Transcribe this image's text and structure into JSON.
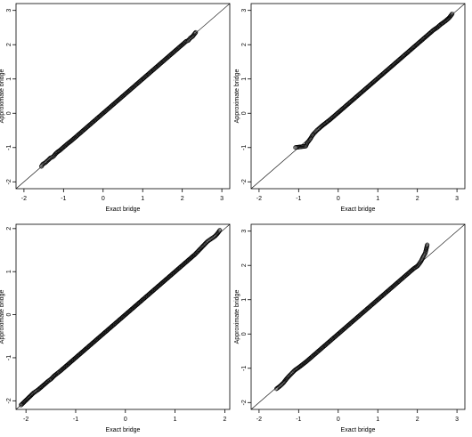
{
  "chart_data": [
    {
      "type": "scatter",
      "xlabel": "Exact bridge",
      "ylabel": "Approximate bridge",
      "xlim": [
        -2.2,
        3.2
      ],
      "ylim": [
        -2.2,
        3.2
      ],
      "xticks": [
        "-2",
        "-1",
        "0",
        "1",
        "2",
        "3"
      ],
      "yticks": [
        "-2",
        "-1",
        "0",
        "1",
        "2",
        "3"
      ],
      "reference_line": "y = x",
      "series": [
        {
          "x": [
            -1.56,
            -1.52,
            -1.47,
            -1.42,
            -1.38,
            -1.33,
            -1.28,
            -1.24,
            -1.2,
            -1.15,
            -1.1,
            -1.05,
            -1.0,
            -0.9,
            -0.8,
            -0.7,
            -0.6,
            -0.5,
            -0.4,
            -0.3,
            -0.2,
            -0.1,
            0.0,
            0.1,
            0.2,
            0.3,
            0.4,
            0.5,
            0.6,
            0.7,
            0.8,
            0.9,
            1.0,
            1.1,
            1.2,
            1.3,
            1.4,
            1.5,
            1.6,
            1.7,
            1.8,
            1.9,
            2.0,
            2.05,
            2.1,
            2.15,
            2.2,
            2.26,
            2.34
          ],
          "y": [
            -1.55,
            -1.48,
            -1.45,
            -1.4,
            -1.36,
            -1.3,
            -1.28,
            -1.24,
            -1.18,
            -1.13,
            -1.09,
            -1.04,
            -0.99,
            -0.89,
            -0.8,
            -0.7,
            -0.6,
            -0.5,
            -0.4,
            -0.3,
            -0.2,
            -0.1,
            0.0,
            0.1,
            0.2,
            0.3,
            0.4,
            0.5,
            0.6,
            0.7,
            0.8,
            0.9,
            1.0,
            1.1,
            1.2,
            1.3,
            1.4,
            1.5,
            1.6,
            1.7,
            1.8,
            1.9,
            2.0,
            2.05,
            2.1,
            2.12,
            2.19,
            2.24,
            2.36
          ]
        }
      ]
    },
    {
      "type": "scatter",
      "xlabel": "Exact bridge",
      "ylabel": "Approximate bridge",
      "xlim": [
        -2.2,
        3.2
      ],
      "ylim": [
        -2.2,
        3.2
      ],
      "xticks": [
        "-2",
        "-1",
        "0",
        "1",
        "2",
        "3"
      ],
      "yticks": [
        "-2",
        "-1",
        "0",
        "1",
        "2",
        "3"
      ],
      "reference_line": "y = x",
      "series": [
        {
          "x": [
            -1.08,
            -0.95,
            -0.82,
            -0.78,
            -0.74,
            -0.7,
            -0.66,
            -0.62,
            -0.58,
            -0.54,
            -0.5,
            -0.4,
            -0.3,
            -0.2,
            -0.1,
            0.0,
            0.1,
            0.2,
            0.3,
            0.4,
            0.5,
            0.6,
            0.7,
            0.8,
            0.9,
            1.0,
            1.1,
            1.2,
            1.3,
            1.4,
            1.5,
            1.6,
            1.7,
            1.8,
            1.9,
            2.0,
            2.1,
            2.2,
            2.3,
            2.4,
            2.5,
            2.6,
            2.65,
            2.72,
            2.8,
            2.88
          ],
          "y": [
            -1.0,
            -0.98,
            -0.96,
            -0.86,
            -0.8,
            -0.74,
            -0.66,
            -0.6,
            -0.55,
            -0.5,
            -0.46,
            -0.36,
            -0.27,
            -0.18,
            -0.08,
            0.02,
            0.12,
            0.22,
            0.32,
            0.42,
            0.52,
            0.62,
            0.72,
            0.82,
            0.92,
            1.02,
            1.12,
            1.22,
            1.32,
            1.42,
            1.52,
            1.62,
            1.72,
            1.82,
            1.92,
            2.02,
            2.12,
            2.22,
            2.32,
            2.42,
            2.5,
            2.6,
            2.64,
            2.7,
            2.78,
            2.9
          ]
        }
      ]
    },
    {
      "type": "scatter",
      "xlabel": "Exact bridge",
      "ylabel": "Approximate bridge",
      "xlim": [
        -2.2,
        2.1
      ],
      "ylim": [
        -2.2,
        2.1
      ],
      "xticks": [
        "-2",
        "-1",
        "0",
        "1",
        "2"
      ],
      "yticks": [
        "-2",
        "-1",
        "0",
        "1",
        "2"
      ],
      "reference_line": "y = x",
      "series": [
        {
          "x": [
            -2.1,
            -1.85,
            -1.8,
            -1.75,
            -1.7,
            -1.65,
            -1.6,
            -1.55,
            -1.5,
            -1.45,
            -1.4,
            -1.3,
            -1.2,
            -1.1,
            -1.0,
            -0.9,
            -0.8,
            -0.7,
            -0.6,
            -0.5,
            -0.4,
            -0.3,
            -0.2,
            -0.1,
            0.0,
            0.1,
            0.2,
            0.3,
            0.4,
            0.5,
            0.6,
            0.7,
            0.8,
            0.9,
            1.0,
            1.1,
            1.2,
            1.3,
            1.4,
            1.45,
            1.5,
            1.55,
            1.6,
            1.65,
            1.7,
            1.75,
            1.8,
            1.85,
            1.9
          ],
          "y": [
            -2.1,
            -1.82,
            -1.78,
            -1.74,
            -1.69,
            -1.64,
            -1.59,
            -1.54,
            -1.5,
            -1.44,
            -1.39,
            -1.3,
            -1.2,
            -1.1,
            -1.0,
            -0.9,
            -0.8,
            -0.7,
            -0.6,
            -0.5,
            -0.4,
            -0.3,
            -0.2,
            -0.1,
            0.0,
            0.1,
            0.2,
            0.3,
            0.4,
            0.5,
            0.6,
            0.7,
            0.8,
            0.9,
            1.0,
            1.1,
            1.2,
            1.3,
            1.4,
            1.46,
            1.52,
            1.58,
            1.64,
            1.7,
            1.74,
            1.78,
            1.82,
            1.88,
            1.96
          ]
        }
      ]
    },
    {
      "type": "scatter",
      "xlabel": "Exact bridge",
      "ylabel": "Approximate bridge",
      "xlim": [
        -2.2,
        3.2
      ],
      "ylim": [
        -2.2,
        3.2
      ],
      "xticks": [
        "-2",
        "-1",
        "0",
        "1",
        "2",
        "3"
      ],
      "yticks": [
        "-2",
        "-1",
        "0",
        "1",
        "2",
        "3"
      ],
      "reference_line": "y = x",
      "series": [
        {
          "x": [
            -1.56,
            -1.45,
            -1.38,
            -1.3,
            -1.22,
            -1.15,
            -1.1,
            -1.05,
            -1.0,
            -0.9,
            -0.8,
            -0.7,
            -0.6,
            -0.5,
            -0.4,
            -0.3,
            -0.2,
            -0.1,
            0.0,
            0.1,
            0.2,
            0.3,
            0.4,
            0.5,
            0.6,
            0.7,
            0.8,
            0.9,
            1.0,
            1.1,
            1.2,
            1.3,
            1.4,
            1.5,
            1.6,
            1.7,
            1.8,
            1.9,
            2.0,
            2.05,
            2.1,
            2.15,
            2.2,
            2.25
          ],
          "y": [
            -1.6,
            -1.5,
            -1.42,
            -1.3,
            -1.2,
            -1.12,
            -1.06,
            -1.02,
            -0.98,
            -0.89,
            -0.8,
            -0.7,
            -0.6,
            -0.5,
            -0.4,
            -0.3,
            -0.2,
            -0.1,
            0.0,
            0.1,
            0.2,
            0.3,
            0.4,
            0.5,
            0.6,
            0.7,
            0.8,
            0.9,
            1.0,
            1.1,
            1.2,
            1.3,
            1.4,
            1.5,
            1.6,
            1.7,
            1.8,
            1.9,
            1.98,
            2.05,
            2.14,
            2.26,
            2.36,
            2.6
          ]
        }
      ]
    }
  ]
}
